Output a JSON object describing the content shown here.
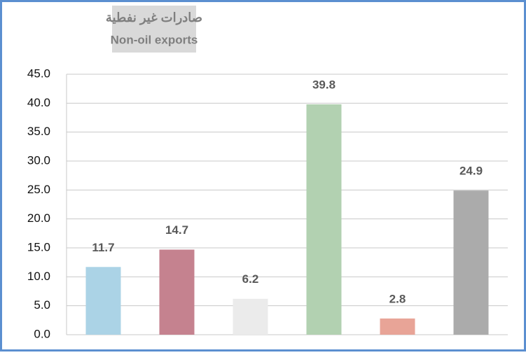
{
  "chart_data": {
    "type": "bar",
    "title": [
      "صادرات غير نفطية",
      "Non-oil exports"
    ],
    "categories": [
      null,
      null,
      null,
      null,
      null,
      null
    ],
    "values": [
      11.7,
      14.7,
      6.2,
      39.8,
      2.8,
      24.9
    ],
    "colors": [
      "#abd3e6",
      "#c5828f",
      "#ebebeb",
      "#b2d1b1",
      "#e8a497",
      "#ababab"
    ],
    "ylim": [
      0,
      45
    ],
    "yticks": [
      {
        "value": 0,
        "label": "0.0"
      },
      {
        "value": 5,
        "label": "5.0"
      },
      {
        "value": 10,
        "label": "10.0"
      },
      {
        "value": 15,
        "label": "15.0"
      },
      {
        "value": 20,
        "label": "20.0"
      },
      {
        "value": 25,
        "label": "25.0"
      },
      {
        "value": 30,
        "label": "30.0"
      },
      {
        "value": 35,
        "label": "35.0"
      },
      {
        "value": 40,
        "label": "40.0"
      },
      {
        "value": 45,
        "label": "45.0"
      }
    ],
    "grid": true
  }
}
